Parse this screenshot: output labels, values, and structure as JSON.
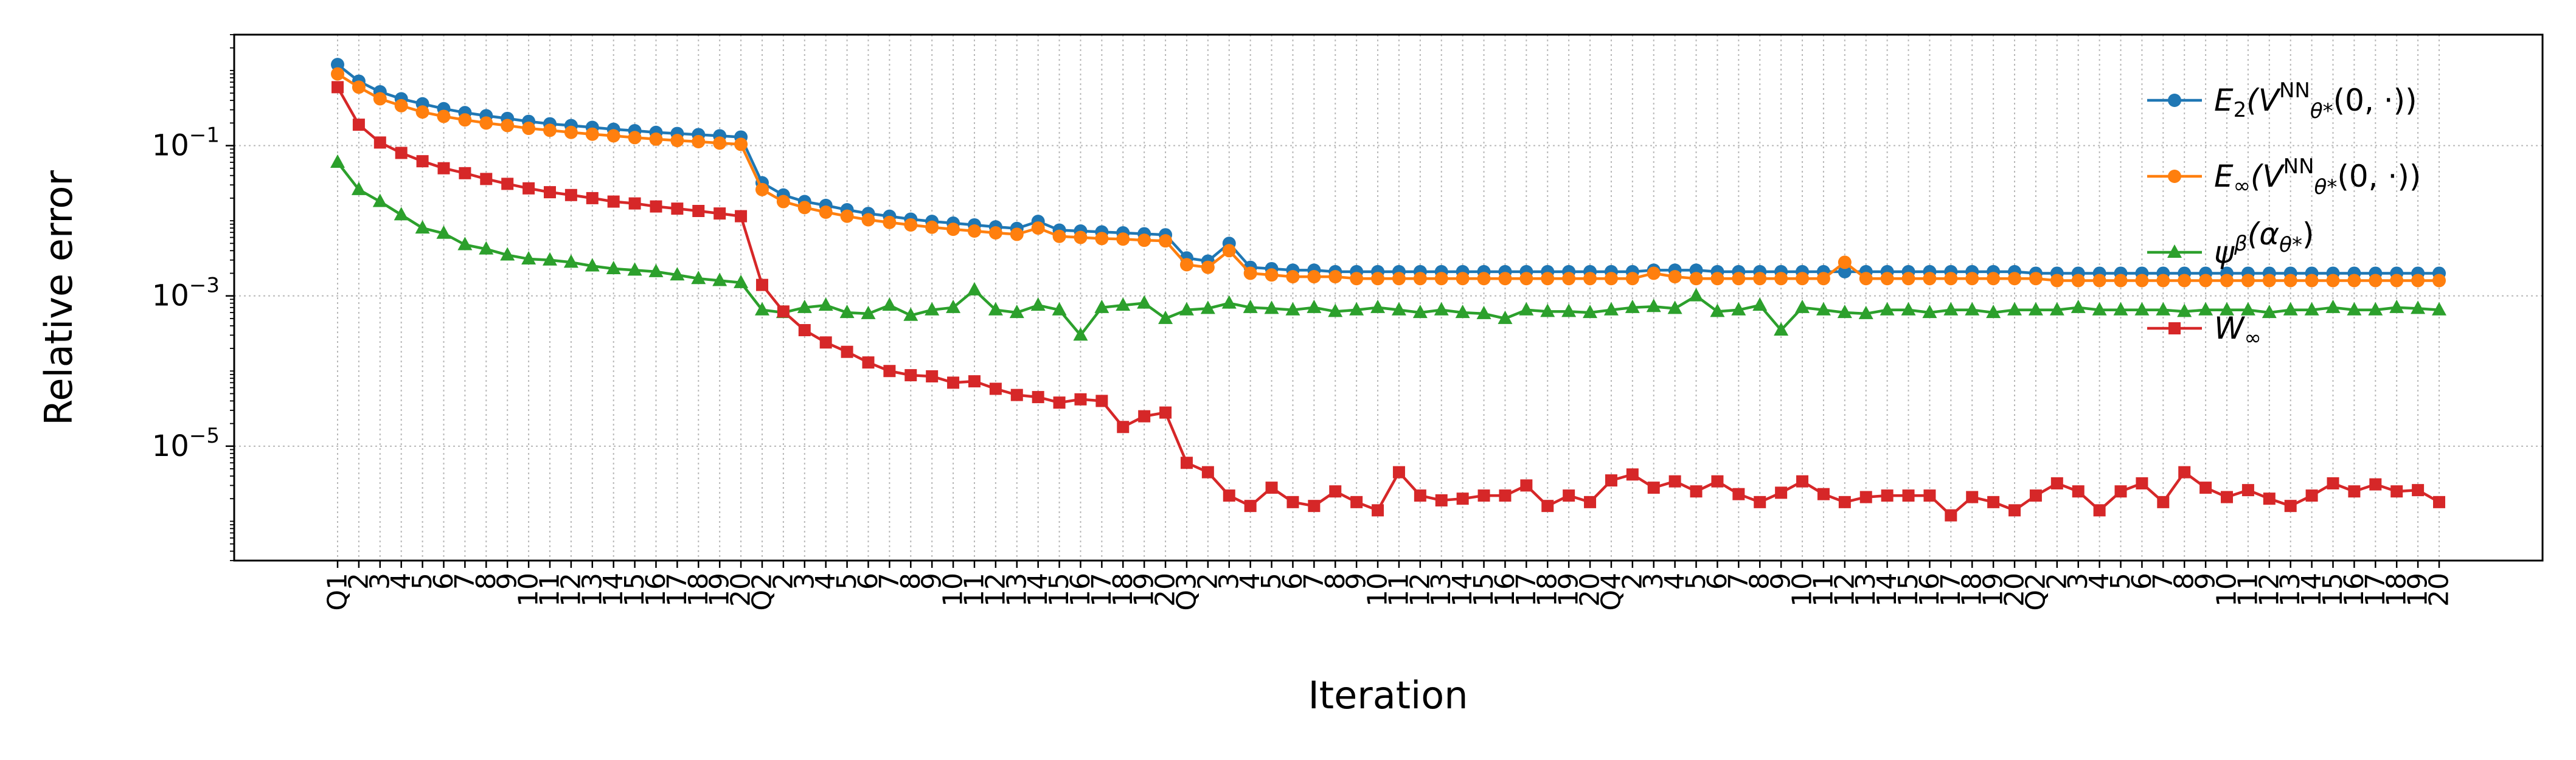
{
  "chart_data": {
    "type": "line",
    "title": "",
    "xlabel": "Iteration",
    "ylabel": "Relative error",
    "yscale": "log",
    "ylim": [
      3e-07,
      3.0
    ],
    "yticks": [
      {
        "value": 0.1,
        "base": "10",
        "exp": "−1"
      },
      {
        "value": 0.001,
        "base": "10",
        "exp": "−3"
      },
      {
        "value": 1e-05,
        "base": "10",
        "exp": "−5"
      }
    ],
    "grid": true,
    "legend_position": "top-right",
    "categories": [
      "Q1",
      "2",
      "3",
      "4",
      "5",
      "6",
      "7",
      "8",
      "9",
      "10",
      "11",
      "12",
      "13",
      "14",
      "15",
      "16",
      "17",
      "18",
      "19",
      "20",
      "Q2",
      "2",
      "3",
      "4",
      "5",
      "6",
      "7",
      "8",
      "9",
      "10",
      "11",
      "12",
      "13",
      "14",
      "15",
      "16",
      "17",
      "18",
      "19",
      "20",
      "Q3",
      "2",
      "3",
      "4",
      "5",
      "6",
      "7",
      "8",
      "9",
      "10",
      "11",
      "12",
      "13",
      "14",
      "15",
      "16",
      "17",
      "18",
      "19",
      "20",
      "Q4",
      "2",
      "3",
      "4",
      "5",
      "6",
      "7",
      "8",
      "9",
      "10",
      "11",
      "12",
      "13",
      "14",
      "15",
      "16",
      "17",
      "18",
      "19",
      "20",
      "Q2",
      "2",
      "3",
      "4",
      "5",
      "6",
      "7",
      "8",
      "9",
      "10",
      "11",
      "12",
      "13",
      "14",
      "15",
      "16",
      "17",
      "18",
      "19",
      "20"
    ],
    "series": [
      {
        "name": "E₂(V^NN_θ*(0, ·))",
        "label_main": "E",
        "label_sub": "2",
        "label_mid": "(V",
        "label_sup2": "NN",
        "label_sub2": "θ*",
        "label_end": "(0, ·))",
        "color": "#1f77b4",
        "marker": "circle",
        "values": [
          1.2,
          0.72,
          0.52,
          0.42,
          0.36,
          0.31,
          0.275,
          0.25,
          0.23,
          0.21,
          0.195,
          0.185,
          0.175,
          0.165,
          0.158,
          0.15,
          0.145,
          0.14,
          0.135,
          0.13,
          0.032,
          0.022,
          0.018,
          0.016,
          0.014,
          0.0125,
          0.0115,
          0.0105,
          0.0098,
          0.0093,
          0.0088,
          0.0083,
          0.0079,
          0.0098,
          0.0075,
          0.0073,
          0.0071,
          0.0069,
          0.0067,
          0.0065,
          0.0032,
          0.0029,
          0.005,
          0.0024,
          0.0023,
          0.0022,
          0.0022,
          0.0021,
          0.0021,
          0.0021,
          0.0021,
          0.0021,
          0.0021,
          0.0021,
          0.0021,
          0.0021,
          0.0021,
          0.0021,
          0.0021,
          0.0021,
          0.0021,
          0.0021,
          0.0022,
          0.0022,
          0.0022,
          0.0021,
          0.0021,
          0.0021,
          0.0021,
          0.0021,
          0.0021,
          0.0021,
          0.0021,
          0.0021,
          0.0021,
          0.0021,
          0.0021,
          0.0021,
          0.0021,
          0.0021,
          0.002,
          0.002,
          0.002,
          0.002,
          0.002,
          0.002,
          0.002,
          0.002,
          0.002,
          0.002,
          0.002,
          0.002,
          0.002,
          0.002,
          0.002,
          0.002,
          0.002,
          0.002,
          0.002,
          0.002
        ]
      },
      {
        "name": "E∞(V^NN_θ*(0, ·))",
        "label_main": "E",
        "label_sub": "∞",
        "label_mid": "(V",
        "label_sup2": "NN",
        "label_sub2": "θ*",
        "label_end": "(0, ·))",
        "color": "#ff7f0e",
        "marker": "circle",
        "values": [
          0.9,
          0.6,
          0.42,
          0.34,
          0.28,
          0.245,
          0.22,
          0.2,
          0.185,
          0.17,
          0.16,
          0.15,
          0.142,
          0.135,
          0.128,
          0.122,
          0.117,
          0.113,
          0.108,
          0.104,
          0.026,
          0.018,
          0.015,
          0.013,
          0.0115,
          0.0103,
          0.0095,
          0.0088,
          0.0082,
          0.0077,
          0.0073,
          0.0069,
          0.0066,
          0.008,
          0.0062,
          0.006,
          0.0058,
          0.0057,
          0.0055,
          0.0054,
          0.0026,
          0.0024,
          0.004,
          0.002,
          0.0019,
          0.0018,
          0.0018,
          0.0018,
          0.0017,
          0.0017,
          0.0017,
          0.0017,
          0.0017,
          0.0017,
          0.0017,
          0.0017,
          0.0017,
          0.0017,
          0.0017,
          0.0017,
          0.0017,
          0.0017,
          0.002,
          0.0018,
          0.0017,
          0.0017,
          0.0017,
          0.0017,
          0.0017,
          0.0017,
          0.0017,
          0.0028,
          0.0017,
          0.0017,
          0.0017,
          0.0017,
          0.0017,
          0.0017,
          0.0017,
          0.0017,
          0.0017,
          0.0016,
          0.0016,
          0.0016,
          0.0016,
          0.0016,
          0.0016,
          0.0016,
          0.0016,
          0.0016,
          0.0016,
          0.0016,
          0.0016,
          0.0016,
          0.0016,
          0.0016,
          0.0016,
          0.0016,
          0.0016,
          0.0016
        ]
      },
      {
        "name": "ψ^β(α_θ*)",
        "label_main": "ψ",
        "label_sup": "β",
        "label_mid": "(α",
        "label_sub2": "θ*",
        "label_end": ")",
        "color": "#2ca02c",
        "marker": "triangle",
        "values": [
          0.06,
          0.026,
          0.018,
          0.012,
          0.008,
          0.0068,
          0.0048,
          0.0042,
          0.0035,
          0.0031,
          0.003,
          0.0028,
          0.0025,
          0.0023,
          0.0022,
          0.0021,
          0.0019,
          0.0017,
          0.0016,
          0.0015,
          0.00065,
          0.0006,
          0.0007,
          0.00075,
          0.0006,
          0.00058,
          0.00075,
          0.00055,
          0.00065,
          0.0007,
          0.0012,
          0.00065,
          0.0006,
          0.00075,
          0.00065,
          0.0003,
          0.0007,
          0.00075,
          0.0008,
          0.0005,
          0.00065,
          0.00068,
          0.0008,
          0.0007,
          0.00068,
          0.00065,
          0.0007,
          0.00062,
          0.00065,
          0.0007,
          0.00065,
          0.0006,
          0.00065,
          0.0006,
          0.00058,
          0.0005,
          0.00065,
          0.00062,
          0.00062,
          0.0006,
          0.00065,
          0.0007,
          0.00072,
          0.00068,
          0.001,
          0.00062,
          0.00065,
          0.00075,
          0.00035,
          0.0007,
          0.00065,
          0.0006,
          0.00058,
          0.00065,
          0.00065,
          0.0006,
          0.00065,
          0.00065,
          0.0006,
          0.00065,
          0.00065,
          0.00065,
          0.0007,
          0.00065,
          0.00065,
          0.00065,
          0.00065,
          0.00062,
          0.00065,
          0.00065,
          0.00065,
          0.0006,
          0.00065,
          0.00065,
          0.0007,
          0.00065,
          0.00065,
          0.0007,
          0.00068,
          0.00065
        ]
      },
      {
        "name": "W∞",
        "label_main": "W",
        "label_sub": "∞",
        "color": "#d62728",
        "marker": "square",
        "values": [
          0.6,
          0.19,
          0.11,
          0.08,
          0.062,
          0.05,
          0.043,
          0.036,
          0.031,
          0.027,
          0.024,
          0.022,
          0.02,
          0.018,
          0.017,
          0.0155,
          0.0145,
          0.0135,
          0.0125,
          0.0115,
          0.0014,
          0.00062,
          0.00035,
          0.00024,
          0.00018,
          0.00013,
          0.0001,
          8.8e-05,
          8.5e-05,
          7e-05,
          7.3e-05,
          5.8e-05,
          4.8e-05,
          4.5e-05,
          3.8e-05,
          4.2e-05,
          4e-05,
          1.8e-05,
          2.5e-05,
          2.8e-05,
          6e-06,
          4.5e-06,
          2.2e-06,
          1.6e-06,
          2.8e-06,
          1.8e-06,
          1.6e-06,
          2.5e-06,
          1.8e-06,
          1.4e-06,
          4.5e-06,
          2.2e-06,
          1.9e-06,
          2e-06,
          2.2e-06,
          2.2e-06,
          3e-06,
          1.6e-06,
          2.2e-06,
          1.8e-06,
          3.5e-06,
          4.2e-06,
          2.8e-06,
          3.4e-06,
          2.5e-06,
          3.4e-06,
          2.3e-06,
          1.8e-06,
          2.4e-06,
          3.4e-06,
          2.3e-06,
          1.8e-06,
          2.1e-06,
          2.2e-06,
          2.2e-06,
          2.2e-06,
          1.2e-06,
          2.1e-06,
          1.8e-06,
          1.4e-06,
          2.2e-06,
          3.2e-06,
          2.5e-06,
          1.4e-06,
          2.5e-06,
          3.2e-06,
          1.8e-06,
          4.5e-06,
          2.8e-06,
          2.1e-06,
          2.6e-06,
          2e-06,
          1.6e-06,
          2.2e-06,
          3.2e-06,
          2.5e-06,
          3.1e-06,
          2.5e-06,
          2.6e-06,
          1.8e-06
        ]
      }
    ]
  }
}
